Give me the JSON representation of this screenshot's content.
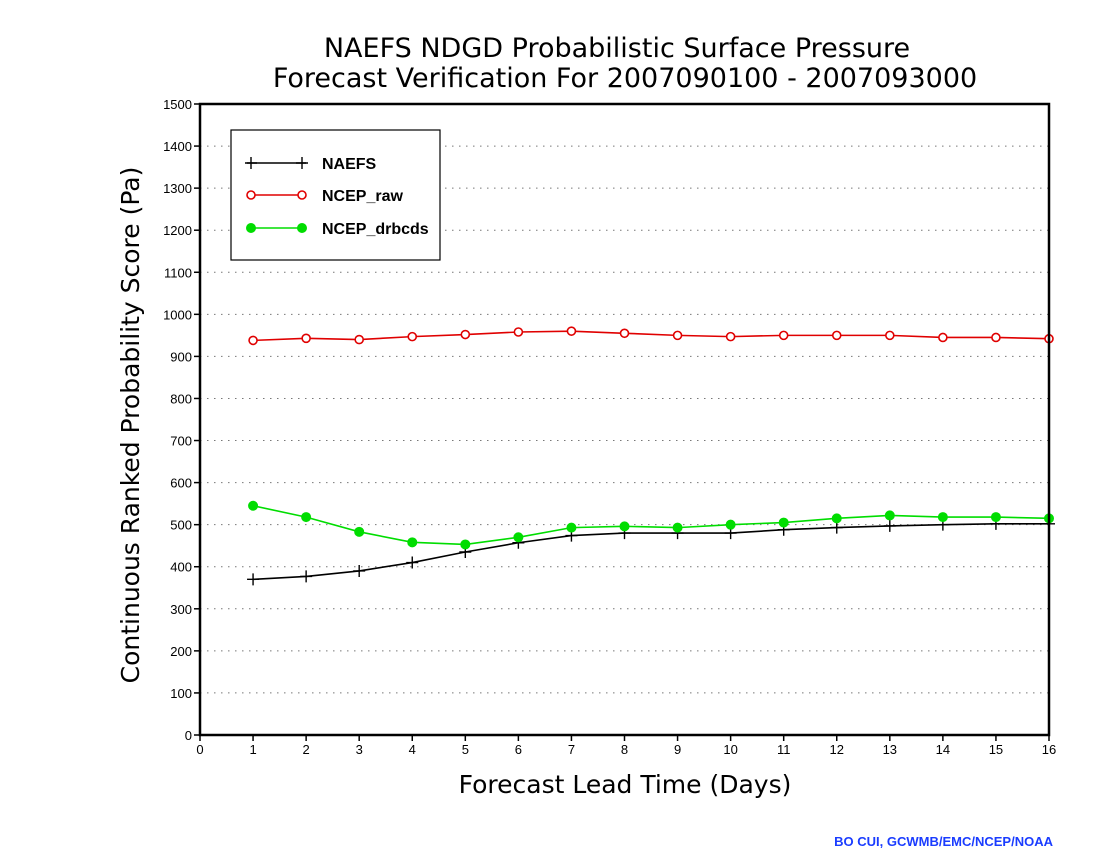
{
  "chart_data": {
    "type": "line",
    "title": [
      "NAEFS NDGD Probabilistic Surface Pressure",
      "Forecast Verification For 2007090100 - 2007093000"
    ],
    "xlabel": "Forecast Lead Time (Days)",
    "ylabel": "Continuous Ranked Probability Score (Pa)",
    "xlim": [
      0,
      16
    ],
    "ylim": [
      0,
      1500
    ],
    "xticks": [
      0,
      1,
      2,
      3,
      4,
      5,
      6,
      7,
      8,
      9,
      10,
      11,
      12,
      13,
      14,
      15,
      16
    ],
    "yticks": [
      0,
      100,
      200,
      300,
      400,
      500,
      600,
      700,
      800,
      900,
      1000,
      1100,
      1200,
      1300,
      1400,
      1500
    ],
    "grid": "horizontal-dotted",
    "legend": "top-left",
    "x": [
      1,
      2,
      3,
      4,
      5,
      6,
      7,
      8,
      9,
      10,
      11,
      12,
      13,
      14,
      15,
      16
    ],
    "series": [
      {
        "name": "NAEFS",
        "color": "#000000",
        "marker": "plus",
        "values": [
          370,
          377,
          390,
          410,
          435,
          457,
          474,
          480,
          480,
          480,
          488,
          493,
          497,
          500,
          502,
          502
        ]
      },
      {
        "name": "NCEP_raw",
        "color": "#e00000",
        "marker": "open-circle",
        "values": [
          938,
          943,
          940,
          947,
          952,
          958,
          960,
          955,
          950,
          947,
          950,
          950,
          950,
          945,
          945,
          942
        ]
      },
      {
        "name": "NCEP_drbcds",
        "color": "#00dd00",
        "marker": "filled-circle",
        "values": [
          545,
          518,
          483,
          458,
          453,
          470,
          493,
          496,
          493,
          500,
          505,
          515,
          522,
          518,
          518,
          515
        ]
      }
    ]
  },
  "credit": {
    "text": "BO CUI, GCWMB/EMC/NCEP/NOAA",
    "color": "#1a3cff"
  }
}
